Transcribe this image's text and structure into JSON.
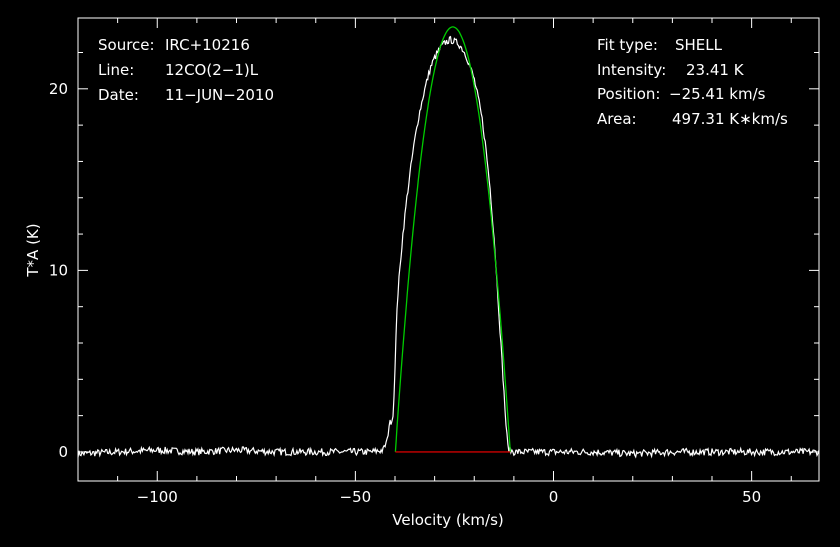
{
  "chart_data": {
    "type": "line",
    "title": "",
    "xlabel": "Velocity (km/s)",
    "ylabel": "T*A (K)",
    "xlim": [
      -120,
      67
    ],
    "ylim": [
      -1.6,
      23.9
    ],
    "x_ticks": [
      {
        "v": -100,
        "label": "−100"
      },
      {
        "v": -50,
        "label": "−50"
      },
      {
        "v": 0,
        "label": "0"
      },
      {
        "v": 50,
        "label": "50"
      }
    ],
    "y_ticks": [
      {
        "v": 0,
        "label": "0"
      },
      {
        "v": 10,
        "label": "10"
      },
      {
        "v": 20,
        "label": "20"
      }
    ],
    "info_left": [
      {
        "key": "Source:",
        "value": "IRC+10216"
      },
      {
        "key": "Line:",
        "value": "12CO(2−1)L"
      },
      {
        "key": "Date:",
        "value": "11−JUN−2010"
      }
    ],
    "info_right": [
      {
        "key": "Fit type:",
        "value": "SHELL"
      },
      {
        "key": "Intensity:",
        "value": "23.41 K"
      },
      {
        "key": "Position:",
        "value": "−25.41 km/s"
      },
      {
        "key": "Area:",
        "value": "497.31 K∗km/s"
      }
    ],
    "fit": {
      "center": -25.41,
      "peak": 23.41,
      "half_width": 14.5,
      "horn": 0.0
    },
    "series": [
      {
        "color": "#ffffff",
        "x": [
          -120,
          -110,
          -100,
          -90,
          -80,
          -70,
          -60,
          -50,
          -46,
          -43,
          -42,
          -41.5,
          -41,
          -40.5,
          -40,
          -39.5,
          -39,
          -38,
          -37,
          -36,
          -35,
          -34,
          -33,
          -32,
          -31,
          -30,
          -29,
          -28,
          -27,
          -26,
          -25,
          -24,
          -23,
          -22,
          -21,
          -20,
          -19,
          -18,
          -17,
          -16,
          -15,
          -14,
          -13,
          -12,
          -11.5,
          -11,
          -10,
          -5,
          0,
          10,
          20,
          30,
          40,
          50,
          60,
          67
        ],
        "y": [
          -0.1,
          0.0,
          0.1,
          0.0,
          0.1,
          0.0,
          0.0,
          0.0,
          0.0,
          0.1,
          0.6,
          1.5,
          1.7,
          2.0,
          4.5,
          8.0,
          9.5,
          12.0,
          14.0,
          15.7,
          17.2,
          18.5,
          19.5,
          20.4,
          21.2,
          21.7,
          22.1,
          22.4,
          22.6,
          22.7,
          22.6,
          22.5,
          22.2,
          21.8,
          21.2,
          20.5,
          19.5,
          18.3,
          16.6,
          14.5,
          11.8,
          8.5,
          5.0,
          1.5,
          0.3,
          0.1,
          0.0,
          0.0,
          0.0,
          0.0,
          -0.1,
          0.0,
          0.0,
          0.0,
          0.0,
          0.0
        ]
      },
      {
        "color": "#00cc00",
        "name": "",
        "x": [],
        "y": []
      }
    ],
    "baseline": {
      "x": [
        -39.9,
        -10.9
      ],
      "y": 0,
      "color": "#cc0000"
    },
    "noise_amplitude": 0.12,
    "grid": false
  }
}
